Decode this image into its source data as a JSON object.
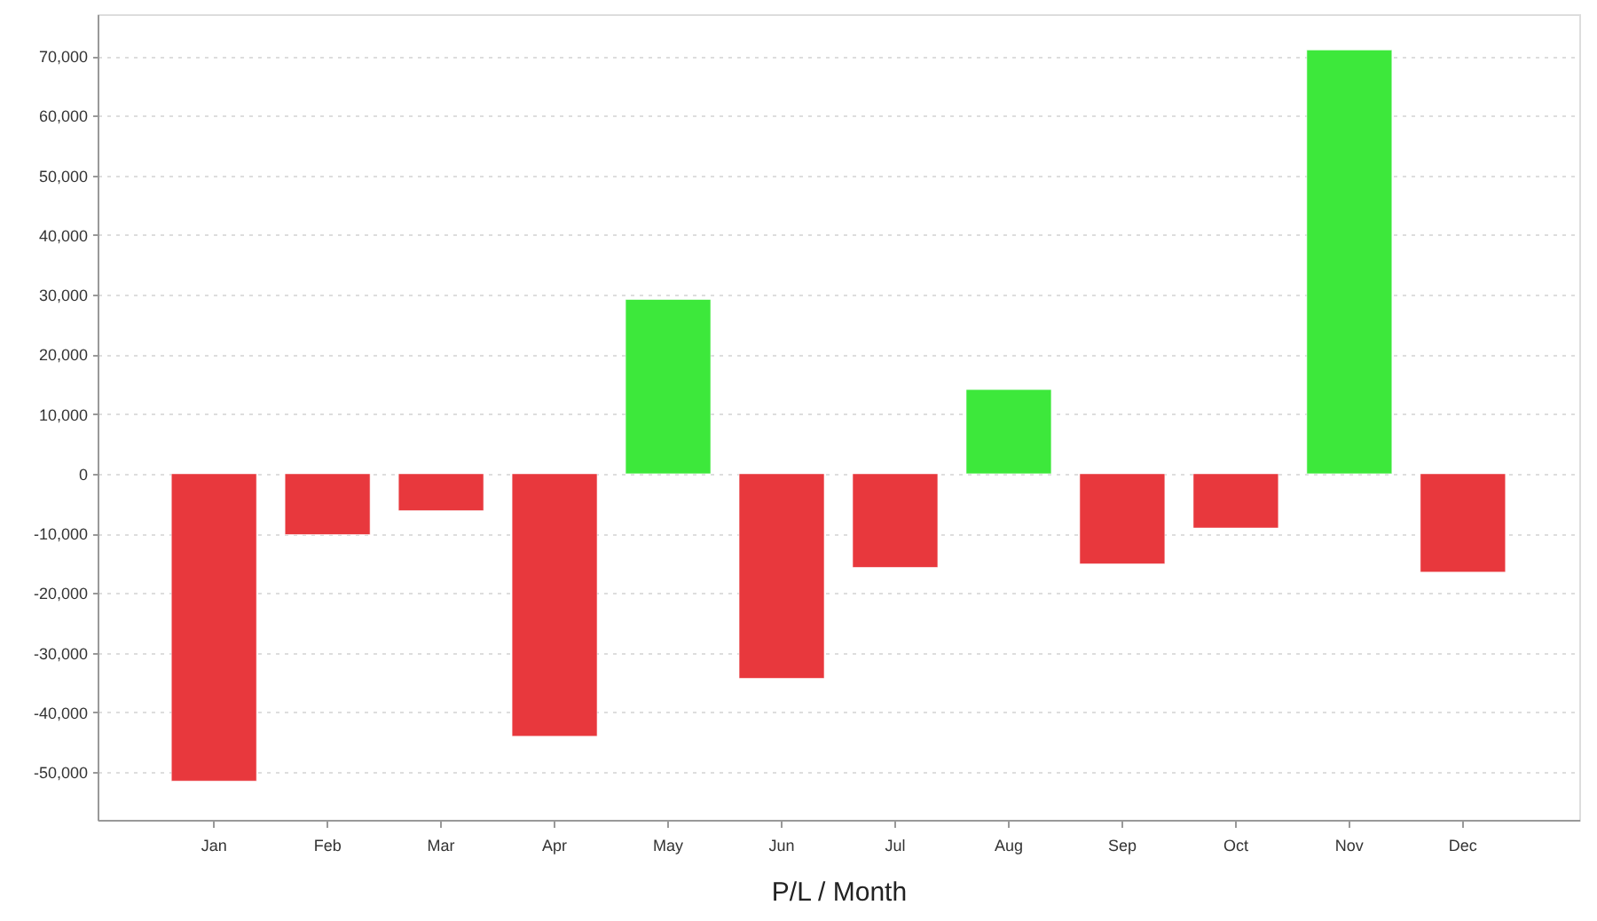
{
  "chart_data": {
    "type": "bar",
    "xlabel": "P/L / Month",
    "categories": [
      "Jan",
      "Feb",
      "Mar",
      "Apr",
      "May",
      "Jun",
      "Jul",
      "Aug",
      "Sep",
      "Oct",
      "Nov",
      "Dec"
    ],
    "values": [
      -51500,
      -10200,
      -6200,
      -44000,
      29200,
      -34300,
      -15700,
      14100,
      -15100,
      -9100,
      71000,
      -16500
    ],
    "colors": [
      "#e8383d",
      "#e8383d",
      "#e8383d",
      "#e8383d",
      "#3de83b",
      "#e8383d",
      "#e8383d",
      "#3de83b",
      "#e8383d",
      "#e8383d",
      "#3de83b",
      "#e8383d"
    ],
    "ylim": [
      -58000,
      77000
    ],
    "yticks": [
      {
        "value": -50000,
        "label": "-50,000"
      },
      {
        "value": -40000,
        "label": "-40,000"
      },
      {
        "value": -30000,
        "label": "-30,000"
      },
      {
        "value": -20000,
        "label": "-20,000"
      },
      {
        "value": -10000,
        "label": "-10,000"
      },
      0,
      {
        "value": 10000,
        "label": "10,000"
      },
      {
        "value": 20000,
        "label": "20,000"
      },
      {
        "value": 30000,
        "label": "30,000"
      },
      {
        "value": 40000,
        "label": "40,000"
      },
      {
        "value": 50000,
        "label": "50,000"
      },
      {
        "value": 60000,
        "label": "60,000"
      },
      {
        "value": 70000,
        "label": "70,000"
      }
    ],
    "grid": "y"
  }
}
